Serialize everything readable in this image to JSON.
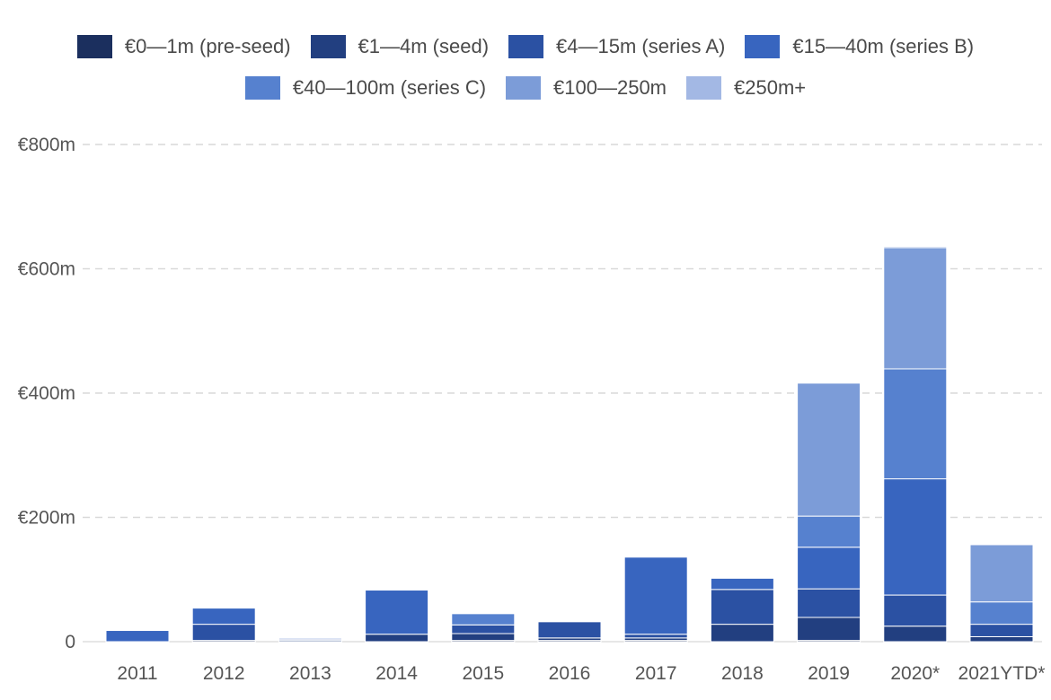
{
  "chart_data": {
    "type": "bar",
    "stacked": true,
    "title": "",
    "xlabel": "",
    "ylabel": "",
    "ylim": [
      0,
      800
    ],
    "y_ticks": [
      {
        "value": 0,
        "label": "0"
      },
      {
        "value": 200,
        "label": "€200m"
      },
      {
        "value": 400,
        "label": "€400m"
      },
      {
        "value": 600,
        "label": "€600m"
      },
      {
        "value": 800,
        "label": "€800m"
      }
    ],
    "grid": true,
    "legend_position": "top",
    "categories": [
      "2011",
      "2012",
      "2013",
      "2014",
      "2015",
      "2016",
      "2017",
      "2018",
      "2019",
      "2020*",
      "2021YTD*"
    ],
    "series": [
      {
        "name": "€0—1m (pre-seed)",
        "color": "#1b2f5e",
        "values": [
          0,
          2,
          0,
          0,
          2,
          2,
          2,
          0,
          2,
          0,
          0
        ]
      },
      {
        "name": "€1—4m (seed)",
        "color": "#223f80",
        "values": [
          0,
          0,
          2,
          12,
          11,
          4,
          4,
          28,
          37,
          25,
          8
        ]
      },
      {
        "name": "€4—15m (series A)",
        "color": "#2b51a3",
        "values": [
          0,
          26,
          2,
          0,
          14,
          26,
          6,
          56,
          46,
          50,
          20
        ]
      },
      {
        "name": "€15—40m (series B)",
        "color": "#3865bf",
        "values": [
          18,
          26,
          0,
          71,
          0,
          0,
          124,
          18,
          67,
          187,
          0
        ]
      },
      {
        "name": "€40—100m (series C)",
        "color": "#5681cf",
        "values": [
          0,
          0,
          0,
          0,
          18,
          0,
          0,
          0,
          50,
          177,
          36
        ]
      },
      {
        "name": "€100—250m",
        "color": "#7c9cd8",
        "values": [
          0,
          0,
          0,
          0,
          0,
          0,
          0,
          0,
          214,
          195,
          92
        ]
      },
      {
        "name": "€250m+",
        "color": "#a3b8e4",
        "values": [
          0,
          0,
          2,
          0,
          0,
          0,
          0,
          0,
          0,
          2,
          0
        ]
      }
    ]
  }
}
